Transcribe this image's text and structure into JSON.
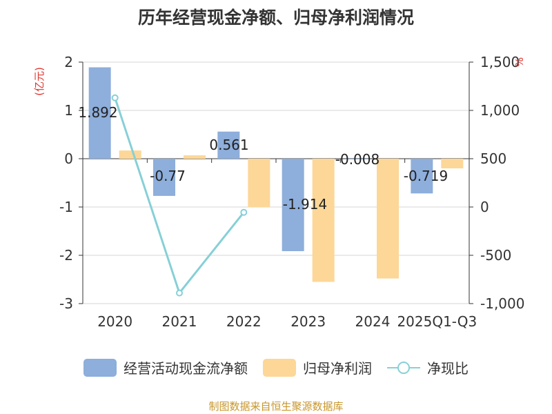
{
  "chart_data": {
    "title": "历年经营现金净额、归母净利润情况",
    "type": "bar",
    "categories": [
      "2020",
      "2021",
      "2022",
      "2023",
      "2024",
      "2025Q1-Q3"
    ],
    "left_axis": {
      "unit_label": "(亿元)",
      "ylim": [
        -3,
        2
      ],
      "ticks": [
        "2",
        "1",
        "0",
        "-1",
        "-2",
        "-3"
      ],
      "tick_values": [
        2,
        1,
        0,
        -1,
        -2,
        -3
      ]
    },
    "right_axis": {
      "unit_label": "%",
      "ylim": [
        -1000,
        1500
      ],
      "ticks": [
        "1,500",
        "1,000",
        "500",
        "0",
        "-500",
        "-1,000"
      ],
      "tick_values": [
        1500,
        1000,
        500,
        0,
        -500,
        -1000
      ]
    },
    "series": [
      {
        "name": "经营活动现金流净额",
        "kind": "bar",
        "axis": "left",
        "color": "#8eaedb",
        "values": [
          1.892,
          -0.77,
          0.561,
          -1.914,
          -0.008,
          -0.719
        ],
        "labels": [
          "1.892",
          "-0.77",
          "0.561",
          "-1.914",
          "-0.008",
          "-0.719"
        ]
      },
      {
        "name": "归母净利润",
        "kind": "bar",
        "axis": "left",
        "color": "#fdd797",
        "values": [
          0.17,
          0.07,
          -1.0,
          -2.55,
          -2.48,
          -0.2
        ]
      },
      {
        "name": "净现比",
        "kind": "line",
        "axis": "right",
        "color": "#86d0d6",
        "values": [
          1130,
          -890,
          -55,
          null,
          null,
          null
        ]
      }
    ],
    "legend_position": "bottom",
    "grid": true
  },
  "source": "制图数据来自恒生聚源数据库"
}
